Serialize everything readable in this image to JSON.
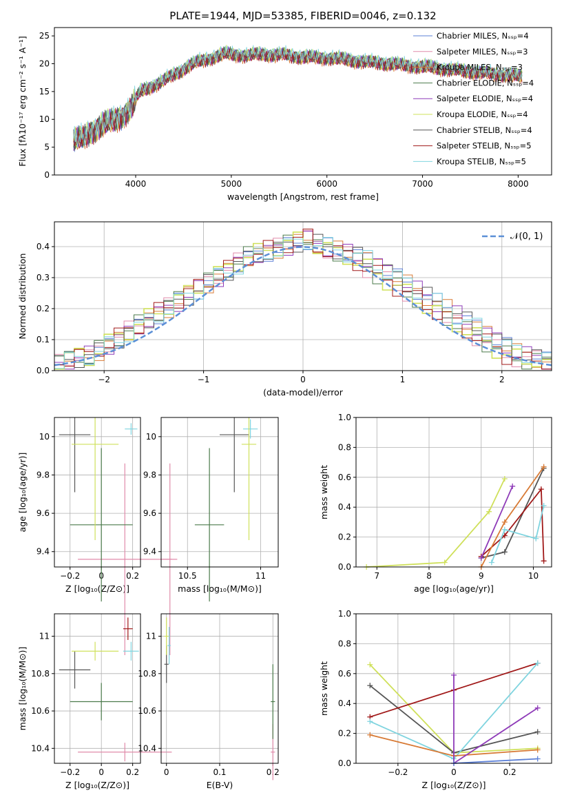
{
  "title": "PLATE=1944, MJD=53385, FIBERID=0046, z=0.132",
  "colors": {
    "Chabrier MILES": "#5b7fd6",
    "Salpeter MILES": "#e08aaa",
    "Kroupa MILES": "#d87a35",
    "Chabrier ELODIE": "#4a7a4a",
    "Salpeter ELODIE": "#8e3ab8",
    "Kroupa ELODIE": "#cfe05a",
    "Chabrier STELIB": "#555555",
    "Salpeter STELIB": "#a01818",
    "Kroupa STELIB": "#7fd4df"
  },
  "chart_data": [
    {
      "type": "line",
      "title": "PLATE=1944, MJD=53385, FIBERID=0046, z=0.132",
      "xlabel": "wavelength [Angstrom, rest frame]",
      "ylabel": "Flux [fλ10⁻¹⁷ erg cm⁻² s⁻¹ A⁻¹]",
      "xlim": [
        3150,
        8350
      ],
      "ylim": [
        0,
        26.5
      ],
      "xticks": [
        4000,
        5000,
        6000,
        7000,
        8000
      ],
      "yticks": [
        0,
        5,
        10,
        15,
        20,
        25
      ],
      "grid": false,
      "legend": "top-right",
      "x": [
        3350,
        3450,
        3550,
        3650,
        3750,
        3850,
        3950,
        4050,
        4150,
        4250,
        4350,
        4450,
        4550,
        4650,
        4750,
        4850,
        4950,
        5050,
        5150,
        5250,
        5350,
        5450,
        5550,
        5650,
        5750,
        5850,
        5950,
        6050,
        6150,
        6250,
        6350,
        6450,
        6550,
        6650,
        6750,
        6850,
        6950,
        7050,
        7150,
        7250,
        7350,
        7450,
        7550,
        7650,
        7750,
        7850,
        7950,
        8050
      ],
      "series": [
        {
          "name": "Chabrier MILES, N_SSP=4",
          "values": [
            6.2,
            6.5,
            8.0,
            9.0,
            9.5,
            10.5,
            12.0,
            15.0,
            15.8,
            16.5,
            17.5,
            18.5,
            19.5,
            20.3,
            20.8,
            21.3,
            21.8,
            21.6,
            21.4,
            21.6,
            21.7,
            21.5,
            21.6,
            21.3,
            21.2,
            21.1,
            21.0,
            21.0,
            20.8,
            20.6,
            20.4,
            20.2,
            20.1,
            20.0,
            19.8,
            19.6,
            19.5,
            19.4,
            19.2,
            19.0,
            18.8,
            18.6,
            18.5,
            18.3,
            18.1,
            18.0,
            17.8,
            17.6
          ]
        },
        {
          "name": "Salpeter MILES, N_SSP=3",
          "values": [
            6.1,
            6.4,
            7.9,
            8.9,
            9.4,
            10.4,
            11.9,
            14.9,
            15.7,
            16.4,
            17.4,
            18.4,
            19.4,
            20.2,
            20.7,
            21.2,
            21.7,
            21.5,
            21.3,
            21.5,
            21.6,
            21.4,
            21.5,
            21.2,
            21.1,
            21.0,
            20.9,
            20.9,
            20.7,
            20.5,
            20.3,
            20.1,
            20.0,
            19.9,
            19.7,
            19.5,
            19.4,
            19.3,
            19.1,
            18.9,
            18.7,
            18.5,
            18.4,
            18.2,
            18.0,
            17.9,
            17.7,
            17.5
          ]
        },
        {
          "name": "Kroupa MILES, N_SSP=3",
          "values": [
            6.0,
            6.3,
            7.8,
            8.8,
            9.3,
            10.3,
            11.8,
            14.8,
            15.6,
            16.3,
            17.3,
            18.3,
            19.3,
            20.1,
            20.6,
            21.1,
            21.6,
            21.4,
            21.2,
            21.4,
            21.5,
            21.3,
            21.4,
            21.1,
            21.0,
            20.9,
            20.8,
            20.8,
            20.6,
            20.4,
            20.2,
            20.0,
            19.9,
            19.8,
            19.6,
            19.4,
            19.3,
            19.2,
            19.0,
            18.8,
            18.6,
            18.4,
            18.3,
            18.1,
            17.9,
            17.8,
            17.6,
            17.4
          ]
        },
        {
          "name": "Chabrier ELODIE, N_SSP=4",
          "values": [
            6.3,
            6.6,
            8.1,
            9.1,
            9.6,
            10.6,
            12.1,
            15.1,
            15.9,
            16.6,
            17.6,
            18.6,
            19.6,
            20.4,
            20.9,
            21.4,
            21.9,
            21.7,
            21.5,
            21.7,
            21.8,
            21.6,
            21.7,
            21.4,
            21.3,
            21.2,
            21.1,
            21.1,
            20.9,
            20.7,
            20.5,
            20.3,
            20.2,
            20.1,
            19.9,
            19.7,
            19.6,
            19.5,
            19.3,
            19.1,
            18.9,
            18.7,
            18.6,
            18.4,
            18.2,
            18.1,
            17.9,
            17.7
          ]
        },
        {
          "name": "Salpeter ELODIE, N_SSP=4",
          "values": [
            6.2,
            6.5,
            8.0,
            9.0,
            9.5,
            10.5,
            12.0,
            15.0,
            15.8,
            16.5,
            17.5,
            18.5,
            19.5,
            20.3,
            20.8,
            21.3,
            21.8,
            21.6,
            21.4,
            21.6,
            21.7,
            21.5,
            21.6,
            21.3,
            21.2,
            21.1,
            21.0,
            21.0,
            20.8,
            20.6,
            20.4,
            20.2,
            20.1,
            20.0,
            19.8,
            19.6,
            19.5,
            19.4,
            19.2,
            19.0,
            18.8,
            18.6,
            18.5,
            18.3,
            18.1,
            18.0,
            17.8,
            17.6
          ]
        },
        {
          "name": "Kroupa ELODIE, N_SSP=4",
          "values": [
            6.4,
            6.7,
            8.2,
            9.2,
            9.7,
            10.7,
            12.2,
            15.2,
            16.0,
            16.7,
            17.7,
            18.7,
            19.7,
            20.5,
            21.0,
            21.5,
            22.0,
            21.8,
            21.6,
            21.8,
            21.9,
            21.7,
            21.8,
            21.5,
            21.4,
            21.3,
            21.2,
            21.2,
            21.0,
            20.8,
            20.6,
            20.4,
            20.3,
            20.2,
            20.0,
            19.8,
            19.7,
            19.6,
            19.4,
            19.2,
            19.0,
            18.8,
            18.7,
            18.5,
            18.3,
            18.2,
            18.0,
            17.8
          ]
        },
        {
          "name": "Chabrier STELIB, N_SSP=4",
          "values": [
            6.2,
            6.5,
            8.0,
            9.0,
            9.5,
            10.5,
            12.0,
            15.0,
            15.8,
            16.5,
            17.5,
            18.5,
            19.5,
            20.3,
            20.8,
            21.3,
            21.8,
            21.6,
            21.4,
            21.6,
            21.7,
            21.5,
            21.6,
            21.3,
            21.2,
            21.1,
            21.0,
            21.0,
            20.8,
            20.6,
            20.4,
            20.2,
            20.1,
            20.0,
            19.8,
            19.6,
            19.5,
            19.4,
            19.2,
            19.0,
            18.8,
            18.6,
            18.5,
            18.3,
            18.1,
            18.0,
            17.8,
            17.6
          ]
        },
        {
          "name": "Salpeter STELIB, N_SSP=5",
          "values": [
            6.1,
            6.4,
            7.9,
            8.9,
            9.4,
            10.4,
            11.9,
            14.9,
            15.7,
            16.4,
            17.4,
            18.4,
            19.4,
            20.2,
            20.7,
            21.2,
            21.7,
            21.5,
            21.3,
            21.5,
            21.6,
            21.4,
            21.5,
            21.2,
            21.1,
            21.0,
            20.9,
            20.9,
            20.7,
            20.5,
            20.3,
            20.1,
            20.0,
            19.9,
            19.7,
            19.5,
            19.4,
            19.3,
            19.1,
            18.9,
            18.7,
            18.5,
            18.4,
            18.2,
            18.0,
            17.9,
            17.7,
            17.5
          ]
        },
        {
          "name": "Kroupa STELIB, N_SSP=5",
          "values": [
            6.6,
            6.9,
            8.4,
            9.4,
            9.9,
            10.9,
            12.4,
            15.4,
            16.2,
            16.9,
            17.9,
            18.9,
            19.9,
            20.7,
            21.2,
            21.7,
            22.2,
            22.0,
            21.8,
            22.0,
            22.1,
            21.9,
            22.0,
            21.7,
            21.6,
            21.5,
            21.4,
            21.4,
            21.2,
            21.0,
            20.8,
            20.6,
            20.5,
            20.4,
            20.2,
            20.0,
            19.9,
            19.8,
            19.6,
            19.4,
            19.2,
            19.0,
            18.9,
            18.7,
            18.5,
            18.4,
            18.2,
            18.0
          ]
        }
      ],
      "legend_entries": [
        "Chabrier MILES, Nₛₛₚ=4",
        "Salpeter MILES, Nₛₛₚ=3",
        "Kroupa MILES, Nₛₛₚ=3",
        "Chabrier ELODIE, Nₛₛₚ=4",
        "Salpeter ELODIE, Nₛₛₚ=4",
        "Kroupa ELODIE, Nₛₛₚ=4",
        "Chabrier STELIB, Nₛₛₚ=4",
        "Salpeter STELIB, Nₛₛₚ=5",
        "Kroupa STELIB, Nₛₛₚ=5"
      ]
    },
    {
      "type": "line",
      "xlabel": "(data-model)/error",
      "ylabel": "Normed distribution",
      "xlim": [
        -2.5,
        2.5
      ],
      "ylim": [
        0,
        0.48
      ],
      "xticks": [
        -2,
        -1,
        0,
        1,
        2
      ],
      "yticks": [
        0.0,
        0.1,
        0.2,
        0.3,
        0.4
      ],
      "grid": true,
      "legend": "top-right",
      "legend_entries": [
        "𝒩(0, 1)"
      ],
      "bin_edges_start": -2.5,
      "bin_width": 0.1,
      "histograms": [
        [
          0.02,
          0.03,
          0.04,
          0.05,
          0.06,
          0.08,
          0.1,
          0.12,
          0.14,
          0.16,
          0.18,
          0.2,
          0.22,
          0.24,
          0.26,
          0.28,
          0.3,
          0.32,
          0.34,
          0.36,
          0.37,
          0.38,
          0.39,
          0.4,
          0.41,
          0.42,
          0.41,
          0.4,
          0.39,
          0.38,
          0.37,
          0.36,
          0.34,
          0.32,
          0.3,
          0.28,
          0.26,
          0.24,
          0.22,
          0.2,
          0.18,
          0.16,
          0.14,
          0.12,
          0.1,
          0.08,
          0.06,
          0.05,
          0.04,
          0.03
        ],
        [
          0.03,
          0.04,
          0.05,
          0.04,
          0.07,
          0.09,
          0.11,
          0.13,
          0.15,
          0.17,
          0.19,
          0.21,
          0.23,
          0.25,
          0.27,
          0.29,
          0.31,
          0.33,
          0.35,
          0.37,
          0.38,
          0.39,
          0.4,
          0.41,
          0.42,
          0.43,
          0.4,
          0.39,
          0.38,
          0.37,
          0.35,
          0.33,
          0.31,
          0.29,
          0.27,
          0.25,
          0.23,
          0.21,
          0.19,
          0.17,
          0.15,
          0.13,
          0.11,
          0.09,
          0.07,
          0.05,
          0.04,
          0.03,
          0.04,
          0.02
        ]
      ]
    },
    {
      "type": "scatter",
      "xlabel": "Z [log₁₀(Z/Z⊙)]",
      "ylabel": "age  [log₁₀(age/yr)]",
      "xlim": [
        -0.3,
        0.25
      ],
      "ylim": [
        9.32,
        10.1
      ],
      "xticks": [
        -0.2,
        0.0,
        0.2
      ],
      "yticks": [
        9.4,
        9.6,
        9.8,
        10.0
      ],
      "grid": true,
      "points": [
        [
          -0.17,
          10.01
        ],
        [
          0.19,
          10.04
        ],
        [
          0.15,
          9.36
        ],
        [
          0.0,
          9.54
        ],
        [
          -0.04,
          9.96
        ]
      ]
    },
    {
      "type": "scatter",
      "xlabel": "mass [log₁₀(M/M⊙)]",
      "xlim": [
        10.32,
        11.12
      ],
      "ylim": [
        9.32,
        10.1
      ],
      "xticks": [
        10.5,
        11.0
      ],
      "yticks": [
        9.4,
        9.6,
        9.8,
        10.0
      ],
      "grid": true,
      "points": [
        [
          10.82,
          10.01
        ],
        [
          10.93,
          10.04
        ],
        [
          10.38,
          9.36
        ],
        [
          10.65,
          9.54
        ],
        [
          10.92,
          9.96
        ]
      ]
    },
    {
      "type": "line",
      "xlabel": "age  [log₁₀(age/yr)]",
      "ylabel": "mass weight",
      "xlim": [
        6.6,
        10.35
      ],
      "ylim": [
        0,
        1.0
      ],
      "xticks": [
        7,
        8,
        9,
        10
      ],
      "yticks": [
        0.0,
        0.2,
        0.4,
        0.6,
        0.8,
        1.0
      ],
      "grid": true,
      "series": [
        {
          "x": [
            6.8,
            8.3,
            9.15,
            9.45
          ],
          "y": [
            0.0,
            0.03,
            0.37,
            0.59
          ]
        },
        {
          "x": [
            9.0,
            9.45,
            10.2
          ],
          "y": [
            0.06,
            0.1,
            0.66
          ]
        },
        {
          "x": [
            9.0,
            9.45,
            10.15,
            10.2
          ],
          "y": [
            0.07,
            0.21,
            0.52,
            0.04
          ]
        },
        {
          "x": [
            9.2,
            9.45,
            10.05,
            10.2
          ],
          "y": [
            0.03,
            0.25,
            0.19,
            0.41
          ]
        },
        {
          "x": [
            9.0,
            9.45,
            10.2
          ],
          "y": [
            0.0,
            0.3,
            0.67
          ]
        },
        {
          "x": [
            9.0,
            9.6
          ],
          "y": [
            0.06,
            0.54
          ]
        }
      ]
    },
    {
      "type": "scatter",
      "xlabel": "Z [log₁₀(Z/Z⊙)]",
      "ylabel": "mass [log₁₀(M/M⊙)]",
      "xlim": [
        -0.3,
        0.25
      ],
      "ylim": [
        10.32,
        11.12
      ],
      "xticks": [
        -0.2,
        0.0,
        0.2
      ],
      "yticks": [
        10.4,
        10.6,
        10.8,
        11.0
      ],
      "grid": true,
      "points": [
        [
          -0.17,
          10.82
        ],
        [
          0.19,
          10.92
        ],
        [
          0.15,
          10.38
        ],
        [
          0.0,
          10.65
        ],
        [
          -0.04,
          10.92
        ],
        [
          0.17,
          11.04
        ]
      ]
    },
    {
      "type": "scatter",
      "xlabel": "E(B-V)",
      "xlim": [
        -0.01,
        0.21
      ],
      "ylim": [
        10.32,
        11.12
      ],
      "xticks": [
        0.0,
        0.1,
        0.2
      ],
      "yticks": [
        10.4,
        10.6,
        10.8,
        11.0
      ],
      "grid": true,
      "points": [
        [
          0.0,
          10.85
        ],
        [
          0.005,
          10.95
        ],
        [
          0.2,
          10.38
        ],
        [
          0.2,
          10.65
        ],
        [
          0.0,
          11.0
        ]
      ]
    },
    {
      "type": "line",
      "xlabel": "Z [log₁₀(Z/Z⊙)]",
      "ylabel": "mass weight",
      "xlim": [
        -0.35,
        0.35
      ],
      "ylim": [
        0,
        1.0
      ],
      "xticks": [
        -0.2,
        0.0,
        0.2
      ],
      "yticks": [
        0.0,
        0.2,
        0.4,
        0.6,
        0.8,
        1.0
      ],
      "grid": true,
      "series": [
        {
          "x": [
            -0.3,
            0.0,
            0.3
          ],
          "y": [
            0.66,
            0.07,
            0.1
          ]
        },
        {
          "x": [
            -0.3,
            0.0,
            0.3
          ],
          "y": [
            0.52,
            0.07,
            0.21
          ]
        },
        {
          "x": [
            -0.3,
            0.0,
            0.3
          ],
          "y": [
            0.31,
            0.49,
            0.67
          ]
        },
        {
          "x": [
            -0.3,
            0.0,
            0.3
          ],
          "y": [
            0.28,
            0.03,
            0.67
          ]
        },
        {
          "x": [
            -0.3,
            0.0,
            0.3
          ],
          "y": [
            0.19,
            0.05,
            0.09
          ]
        },
        {
          "x": [
            0.0,
            0.0,
            0.3
          ],
          "y": [
            0.59,
            0.0,
            0.37
          ]
        },
        {
          "x": [
            0.0,
            0.3
          ],
          "y": [
            0.0,
            0.03
          ]
        }
      ]
    }
  ]
}
